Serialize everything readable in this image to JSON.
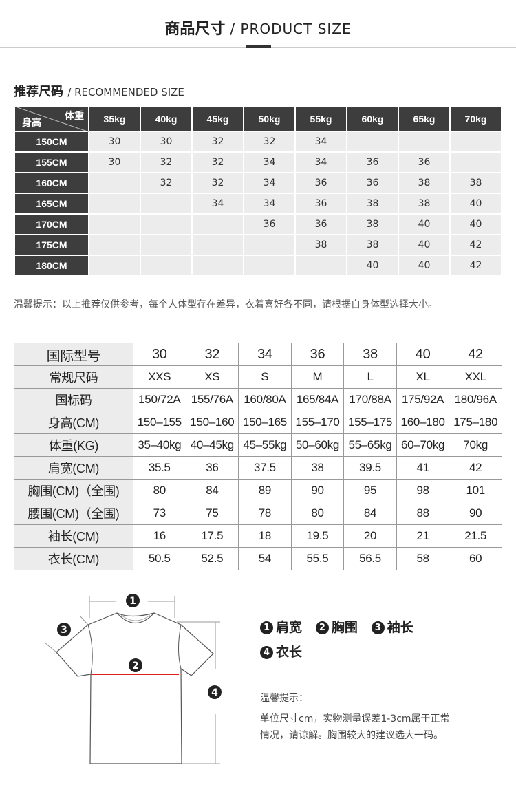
{
  "header": {
    "title_cn": "商品尺寸",
    "title_en": "/ PRODUCT SIZE"
  },
  "recommended": {
    "title_cn": "推荐尺码",
    "title_en": "/ RECOMMENDED SIZE",
    "corner_weight": "体重",
    "corner_height": "身高",
    "weights": [
      "35kg",
      "40kg",
      "45kg",
      "50kg",
      "55kg",
      "60kg",
      "65kg",
      "70kg"
    ],
    "rows": [
      {
        "height": "150CM",
        "sizes": [
          "30",
          "30",
          "32",
          "32",
          "34",
          "",
          "",
          ""
        ]
      },
      {
        "height": "155CM",
        "sizes": [
          "30",
          "32",
          "32",
          "34",
          "34",
          "36",
          "36",
          ""
        ]
      },
      {
        "height": "160CM",
        "sizes": [
          "",
          "32",
          "32",
          "34",
          "36",
          "36",
          "38",
          "38"
        ]
      },
      {
        "height": "165CM",
        "sizes": [
          "",
          "",
          "34",
          "34",
          "36",
          "38",
          "38",
          "40"
        ]
      },
      {
        "height": "170CM",
        "sizes": [
          "",
          "",
          "",
          "36",
          "36",
          "38",
          "40",
          "40"
        ]
      },
      {
        "height": "175CM",
        "sizes": [
          "",
          "",
          "",
          "",
          "38",
          "38",
          "40",
          "42"
        ]
      },
      {
        "height": "180CM",
        "sizes": [
          "",
          "",
          "",
          "",
          "",
          "40",
          "40",
          "42"
        ]
      }
    ]
  },
  "notice": "温馨提示：以上推荐仅供参考，每个人体型存在差异，衣着喜好各不同，请根据自身体型选择大小。",
  "size_table": [
    {
      "label": "国际型号",
      "values": [
        "30",
        "32",
        "34",
        "36",
        "38",
        "40",
        "42"
      ]
    },
    {
      "label": "常规尺码",
      "values": [
        "XXS",
        "XS",
        "S",
        "M",
        "L",
        "XL",
        "XXL"
      ]
    },
    {
      "label": "国标码",
      "values": [
        "150/72A",
        "155/76A",
        "160/80A",
        "165/84A",
        "170/88A",
        "175/92A",
        "180/96A"
      ]
    },
    {
      "label": "身高(CM)",
      "values": [
        "150–155",
        "150–160",
        "150–165",
        "155–170",
        "155–175",
        "160–180",
        "175–180"
      ]
    },
    {
      "label": "体重(KG)",
      "values": [
        "35–40kg",
        "40–45kg",
        "45–55kg",
        "50–60kg",
        "55–65kg",
        "60–70kg",
        "70kg"
      ]
    },
    {
      "label": "肩宽(CM)",
      "values": [
        "35.5",
        "36",
        "37.5",
        "38",
        "39.5",
        "41",
        "42"
      ]
    },
    {
      "label": "胸围(CM)（全围)",
      "values": [
        "80",
        "84",
        "89",
        "90",
        "95",
        "98",
        "101"
      ]
    },
    {
      "label": "腰围(CM)（全围)",
      "values": [
        "73",
        "75",
        "78",
        "80",
        "84",
        "88",
        "90"
      ]
    },
    {
      "label": "袖长(CM)",
      "values": [
        "16",
        "17.5",
        "18",
        "19.5",
        "20",
        "21",
        "21.5"
      ]
    },
    {
      "label": "衣长(CM)",
      "values": [
        "50.5",
        "52.5",
        "54",
        "55.5",
        "56.5",
        "58",
        "60"
      ]
    }
  ],
  "diagram": {
    "markers": [
      "1",
      "2",
      "3",
      "4"
    ],
    "legend": [
      {
        "n": "1",
        "label": "肩宽"
      },
      {
        "n": "2",
        "label": "胸围"
      },
      {
        "n": "3",
        "label": "袖长"
      },
      {
        "n": "4",
        "label": "衣长"
      }
    ],
    "tip_title": "温馨提示：",
    "tip_line1": "单位尺寸cm，实物测量误差1-3cm属于正常",
    "tip_line2": "情况，请谅解。胸围较大的建议选大一码。",
    "chest_line_color": "#e0201b"
  }
}
